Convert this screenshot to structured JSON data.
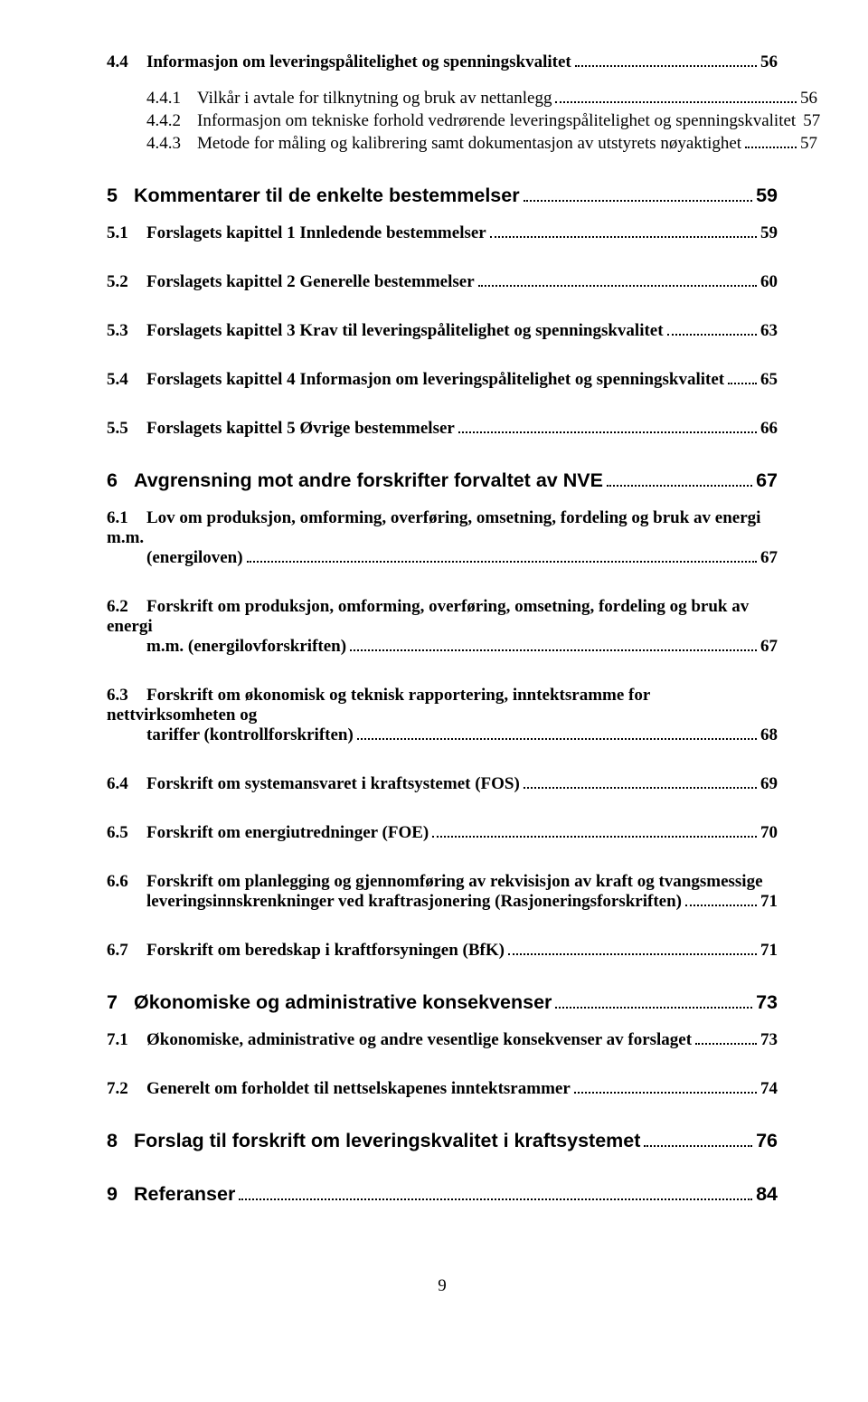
{
  "toc": [
    {
      "level": "l1-serif",
      "num": "4.4",
      "text": "Informasjon om leveringspålitelighet og spenningskvalitet",
      "page": "56"
    },
    {
      "level": "l2",
      "num": "4.4.1",
      "text": "Vilkår i avtale for tilknytning og bruk av nettanlegg",
      "page": "56"
    },
    {
      "level": "l2",
      "num": "4.4.2",
      "text": "Informasjon om tekniske forhold vedrørende leveringspålitelighet og spenningskvalitet",
      "page": "57"
    },
    {
      "level": "l2",
      "num": "4.4.3",
      "text": "Metode for måling og kalibrering samt dokumentasjon av utstyrets nøyaktighet",
      "page": "57"
    },
    {
      "level": "l1-sans",
      "num": "5",
      "text": "Kommentarer til de enkelte bestemmelser",
      "page": "59"
    },
    {
      "level": "l1-serif",
      "num": "5.1",
      "text": "Forslagets kapittel 1 Innledende bestemmelser",
      "page": "59"
    },
    {
      "level": "l1-serif",
      "num": "5.2",
      "text": "Forslagets kapittel 2 Generelle bestemmelser",
      "page": "60"
    },
    {
      "level": "l1-serif",
      "num": "5.3",
      "text": "Forslagets kapittel 3 Krav til leveringspålitelighet og spenningskvalitet",
      "page": "63"
    },
    {
      "level": "l1-serif",
      "num": "5.4",
      "text": "Forslagets kapittel 4 Informasjon om leveringspålitelighet og spenningskvalitet",
      "page": "65"
    },
    {
      "level": "l1-serif",
      "num": "5.5",
      "text": "Forslagets kapittel 5 Øvrige bestemmelser",
      "page": "66"
    },
    {
      "level": "l1-sans",
      "num": "6",
      "text": "Avgrensning mot andre forskrifter forvaltet av NVE",
      "page": "67"
    },
    {
      "level": "l1-serif-ml",
      "num": "6.1",
      "lines": [
        "Lov om produksjon, omforming, overføring, omsetning, fordeling og bruk av energi m.m.",
        "(energiloven)"
      ],
      "page": "67"
    },
    {
      "level": "l1-serif-ml",
      "num": "6.2",
      "lines": [
        "Forskrift om produksjon, omforming, overføring, omsetning, fordeling og bruk av energi",
        "m.m. (energilovforskriften)"
      ],
      "page": "67"
    },
    {
      "level": "l1-serif-ml",
      "num": "6.3",
      "lines": [
        "Forskrift om økonomisk og teknisk rapportering, inntektsramme for nettvirksomheten og",
        "tariffer (kontrollforskriften)"
      ],
      "page": "68"
    },
    {
      "level": "l1-serif",
      "num": "6.4",
      "text": "Forskrift om systemansvaret i kraftsystemet (FOS)",
      "page": "69"
    },
    {
      "level": "l1-serif",
      "num": "6.5",
      "text": "Forskrift om energiutredninger (FOE)",
      "page": "70"
    },
    {
      "level": "l1-serif-ml",
      "num": "6.6",
      "lines": [
        "Forskrift om planlegging og gjennomføring av rekvisisjon av kraft og tvangsmessige",
        "leveringsinnskrenkninger ved kraftrasjonering (Rasjoneringsforskriften)"
      ],
      "page": "71"
    },
    {
      "level": "l1-serif",
      "num": "6.7",
      "text": "Forskrift om beredskap i kraftforsyningen (BfK)",
      "page": "71"
    },
    {
      "level": "l1-sans",
      "num": "7",
      "text": "Økonomiske og administrative konsekvenser",
      "page": "73"
    },
    {
      "level": "l1-serif",
      "num": "7.1",
      "text": "Økonomiske, administrative og andre vesentlige konsekvenser av forslaget",
      "page": "73"
    },
    {
      "level": "l1-serif",
      "num": "7.2",
      "text": "Generelt om forholdet til nettselskapenes inntektsrammer",
      "page": "74"
    },
    {
      "level": "l1-sans",
      "num": "8",
      "text": "Forslag til forskrift om leveringskvalitet i kraftsystemet",
      "page": "76"
    },
    {
      "level": "l1-sans",
      "num": "9",
      "text": "Referanser",
      "page": "84"
    }
  ],
  "footerPage": "9"
}
